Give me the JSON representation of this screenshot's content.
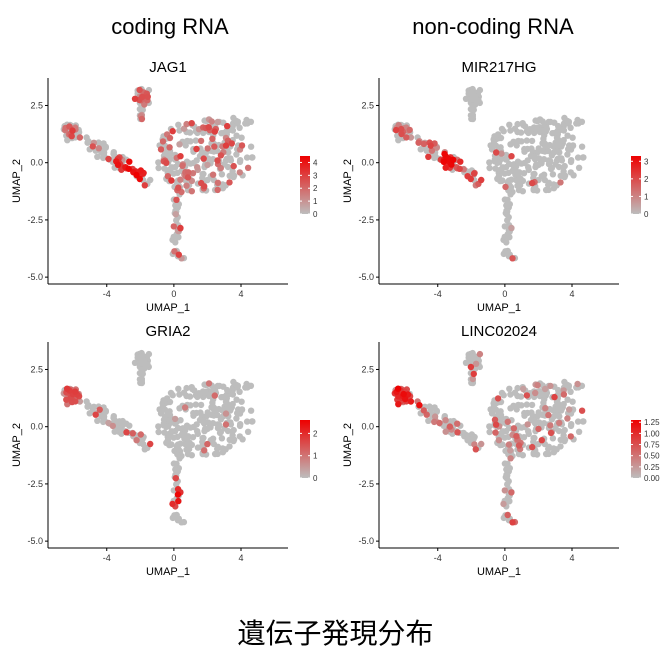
{
  "column_titles": {
    "left": "coding RNA",
    "right": "non-coding RNA"
  },
  "footer_title": "遺伝子発現分布",
  "colors": {
    "low": "#bdbdbd",
    "high": "#ee0000"
  },
  "chart_data": [
    {
      "type": "scatter",
      "title": "JAG1",
      "xlabel": "UMAP_1",
      "ylabel": "UMAP_2",
      "xlim": [
        -7.5,
        6.8
      ],
      "ylim": [
        -5.3,
        3.7
      ],
      "xticks": [
        -4,
        0,
        4
      ],
      "yticks": [
        -5.0,
        -2.5,
        0.0,
        2.5
      ],
      "legend": {
        "position": "right",
        "min": 0,
        "max": 4.5,
        "ticks": [
          0,
          1,
          2,
          3,
          4
        ],
        "labels": [
          "0",
          "1",
          "2",
          "3",
          "4"
        ]
      },
      "expression": {
        "left": 0.3,
        "mid": 0.18,
        "top": 0.4,
        "big": 0.32,
        "hotspots": [
          [
            -2.6,
            -0.2,
            0.55
          ]
        ]
      }
    },
    {
      "type": "scatter",
      "title": "MIR217HG",
      "xlabel": "UMAP_1",
      "ylabel": "UMAP_2",
      "xlim": [
        -7.5,
        6.8
      ],
      "ylim": [
        -5.3,
        3.7
      ],
      "xticks": [
        -4,
        0,
        4
      ],
      "yticks": [
        -5.0,
        -2.5,
        0.0,
        2.5
      ],
      "legend": {
        "position": "right",
        "min": 0,
        "max": 3.3,
        "ticks": [
          0,
          1,
          2,
          3
        ],
        "labels": [
          "0",
          "1",
          "2",
          "3"
        ]
      },
      "expression": {
        "left": 0.2,
        "mid": 0.45,
        "top": 0.02,
        "big": 0.04,
        "hotspots": [
          [
            -3.2,
            0.3,
            0.45
          ]
        ]
      }
    },
    {
      "type": "scatter",
      "title": "GRIA2",
      "xlabel": "UMAP_1",
      "ylabel": "UMAP_2",
      "xlim": [
        -7.5,
        6.8
      ],
      "ylim": [
        -5.3,
        3.7
      ],
      "xticks": [
        -4,
        0,
        4
      ],
      "yticks": [
        -5.0,
        -2.5,
        0.0,
        2.5
      ],
      "legend": {
        "position": "right",
        "min": 0,
        "max": 2.6,
        "ticks": [
          0,
          1,
          2
        ],
        "labels": [
          "0",
          "1",
          "2"
        ]
      },
      "expression": {
        "left": 0.8,
        "mid": 0.12,
        "top": 0.0,
        "big": 0.03,
        "hotspots": [
          [
            0.3,
            -3.0,
            0.35
          ]
        ]
      }
    },
    {
      "type": "scatter",
      "title": "LINC02024",
      "xlabel": "UMAP_1",
      "ylabel": "UMAP_2",
      "xlim": [
        -7.5,
        6.8
      ],
      "ylim": [
        -5.3,
        3.7
      ],
      "xticks": [
        -4,
        0,
        4
      ],
      "yticks": [
        -5.0,
        -2.5,
        0.0,
        2.5
      ],
      "legend": {
        "position": "right",
        "min": 0,
        "max": 1.3,
        "ticks": [
          0,
          0.25,
          0.5,
          0.75,
          1.0,
          1.25
        ],
        "labels": [
          "0.00",
          "0.25",
          "0.50",
          "0.75",
          "1.00",
          "1.25"
        ]
      },
      "expression": {
        "left": 0.65,
        "mid": 0.3,
        "top": 0.12,
        "big": 0.2,
        "hotspots": [
          [
            -5.8,
            1.2,
            0.3
          ]
        ]
      }
    }
  ]
}
